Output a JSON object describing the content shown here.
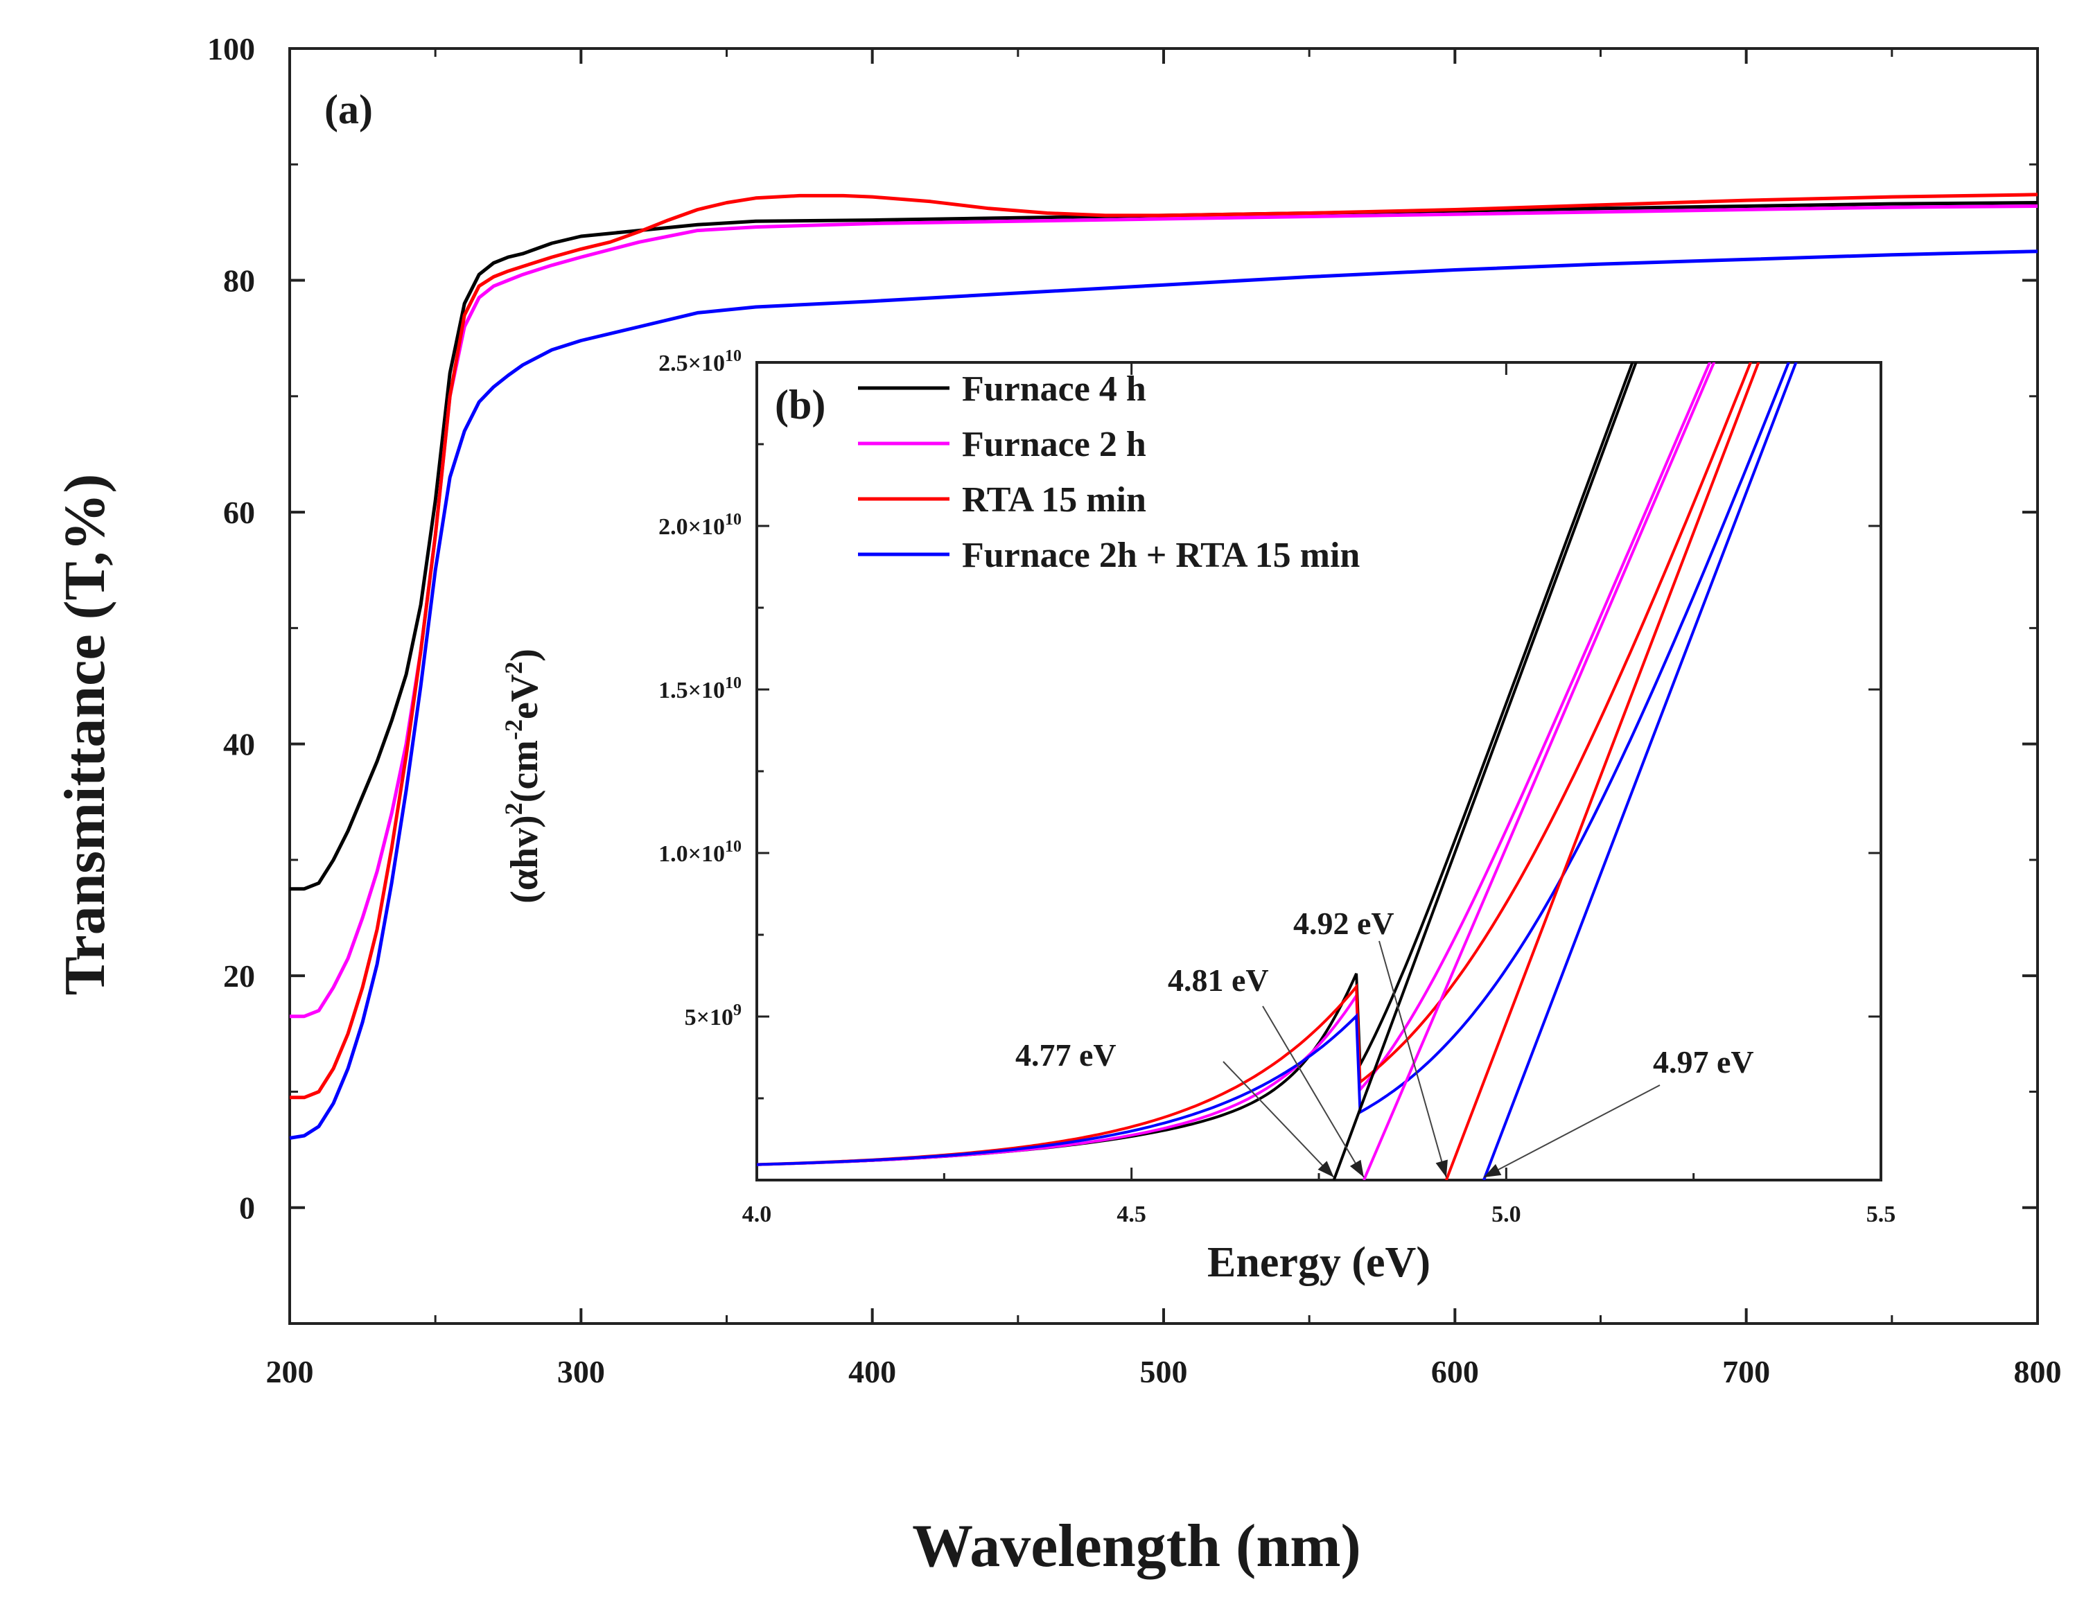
{
  "chart_data": [
    {
      "panel": "(a)",
      "type": "line",
      "xlabel": "Wavelength (nm)",
      "ylabel": "Transmittance (T,%)",
      "xlim": [
        200,
        800
      ],
      "ylim": [
        -10,
        100
      ],
      "xticks": [
        200,
        300,
        400,
        500,
        600,
        700,
        800
      ],
      "yticks": [
        0,
        20,
        40,
        60,
        80,
        100
      ],
      "series": [
        {
          "name": "Furnace 4 h",
          "color": "#000000",
          "x": [
            200,
            205,
            210,
            215,
            220,
            225,
            230,
            235,
            240,
            245,
            250,
            255,
            260,
            265,
            270,
            275,
            280,
            290,
            300,
            320,
            340,
            360,
            400,
            450,
            500,
            550,
            600,
            650,
            700,
            750,
            800
          ],
          "y": [
            27.5,
            27.5,
            28,
            30,
            32.5,
            35.5,
            38.5,
            42,
            46,
            52,
            61,
            72,
            78,
            80.5,
            81.5,
            82,
            82.3,
            83.2,
            83.8,
            84.3,
            84.8,
            85.1,
            85.2,
            85.4,
            85.6,
            85.8,
            86,
            86.2,
            86.4,
            86.6,
            86.7
          ]
        },
        {
          "name": "Furnace 2 h",
          "color": "#ff00ff",
          "x": [
            200,
            205,
            210,
            215,
            220,
            225,
            230,
            235,
            240,
            245,
            250,
            255,
            260,
            265,
            270,
            275,
            280,
            290,
            300,
            320,
            340,
            360,
            400,
            450,
            500,
            550,
            600,
            650,
            700,
            750,
            800
          ],
          "y": [
            16.5,
            16.5,
            17,
            19,
            21.5,
            25,
            29,
            34,
            40,
            48,
            58,
            70,
            76,
            78.5,
            79.5,
            80,
            80.5,
            81.3,
            82,
            83.3,
            84.3,
            84.6,
            84.9,
            85.1,
            85.3,
            85.5,
            85.7,
            85.9,
            86.1,
            86.3,
            86.4
          ]
        },
        {
          "name": "RTA 15 min",
          "color": "#ff0000",
          "x": [
            200,
            205,
            210,
            215,
            220,
            225,
            230,
            235,
            240,
            245,
            250,
            255,
            260,
            265,
            270,
            275,
            280,
            290,
            300,
            310,
            320,
            330,
            340,
            350,
            360,
            375,
            390,
            400,
            420,
            440,
            460,
            480,
            500,
            550,
            600,
            650,
            700,
            750,
            800
          ],
          "y": [
            9.5,
            9.5,
            10,
            12,
            15,
            19,
            24,
            31,
            39,
            48,
            58,
            70,
            77,
            79.5,
            80.3,
            80.8,
            81.2,
            82,
            82.7,
            83.3,
            84.2,
            85.2,
            86.1,
            86.7,
            87.1,
            87.3,
            87.3,
            87.2,
            86.8,
            86.2,
            85.8,
            85.6,
            85.6,
            85.8,
            86.1,
            86.5,
            86.9,
            87.2,
            87.4
          ]
        },
        {
          "name": "Furnace 2h + RTA 15 min",
          "color": "#0000ff",
          "x": [
            200,
            205,
            210,
            215,
            220,
            225,
            230,
            235,
            240,
            245,
            250,
            255,
            260,
            265,
            270,
            275,
            280,
            290,
            300,
            320,
            340,
            360,
            400,
            450,
            500,
            550,
            600,
            650,
            700,
            750,
            800
          ],
          "y": [
            6,
            6.2,
            7,
            9,
            12,
            16,
            21,
            28,
            36,
            45,
            55,
            63,
            67,
            69.5,
            70.8,
            71.8,
            72.7,
            74,
            74.8,
            76,
            77.2,
            77.7,
            78.2,
            78.9,
            79.6,
            80.3,
            80.9,
            81.4,
            81.8,
            82.2,
            82.5
          ]
        }
      ]
    },
    {
      "panel": "(b)",
      "type": "line",
      "inset": true,
      "xlabel": "Energy (eV)",
      "ylabel": "(αhv)2(cm-2eV2)",
      "xlim": [
        4.0,
        5.5
      ],
      "ylim": [
        0,
        25000000000.0
      ],
      "xtick_labels": [
        "4.0",
        "4.5",
        "5.0",
        "5.5"
      ],
      "ytick_labels": [
        "5×10^9",
        "1.0×10^10",
        "1.5×10^10",
        "2.0×10^10",
        "2.5×10^10"
      ],
      "series": [
        {
          "name": "Furnace 4 h",
          "color": "#000000",
          "curve": {
            "eg": 4.77,
            "slope": 62000000000.0,
            "k": 0.045
          }
        },
        {
          "name": "Furnace 2 h",
          "color": "#ff00ff",
          "curve": {
            "eg": 4.81,
            "slope": 53500000000.0,
            "k": 0.07
          }
        },
        {
          "name": "RTA 15 min",
          "color": "#ff0000",
          "curve": {
            "eg": 4.92,
            "slope": 60000000000.0,
            "k": 0.13
          }
        },
        {
          "name": "Furnace 2h + RTA 15 min",
          "color": "#0000ff",
          "curve": {
            "eg": 4.97,
            "slope": 60000000000.0,
            "k": 0.125
          }
        }
      ],
      "tangent_lines": [
        {
          "color": "#000000",
          "x0": 4.77,
          "slope": 62000000000.0
        },
        {
          "color": "#ff00ff",
          "x0": 4.81,
          "slope": 53500000000.0
        },
        {
          "color": "#ff0000",
          "x0": 4.92,
          "slope": 60000000000.0
        },
        {
          "color": "#0000ff",
          "x0": 4.97,
          "slope": 60000000000.0
        }
      ],
      "annotations": [
        {
          "text": "4.77 eV",
          "target_x": 4.77
        },
        {
          "text": "4.81 eV",
          "target_x": 4.81
        },
        {
          "text": "4.92 eV",
          "target_x": 4.92
        },
        {
          "text": "4.97 eV",
          "target_x": 4.97
        }
      ],
      "legend": [
        "Furnace 4 h",
        "Furnace 2 h",
        "RTA 15 min",
        "Furnace 2h + RTA 15 min"
      ],
      "legend_position": "top-left"
    }
  ]
}
